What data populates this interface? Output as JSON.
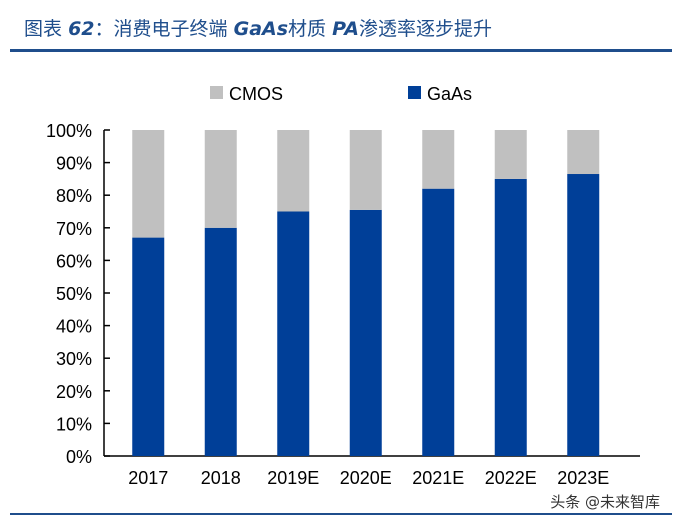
{
  "title": {
    "prefix": "图表",
    "number": "62",
    "sep": "：",
    "t1": "消费电子终端",
    "t2": "GaAs",
    "t3": "材质",
    "t4": "PA",
    "t5": "渗透率逐步提升"
  },
  "watermark": "头条 @未来智库",
  "chart_data": {
    "type": "bar",
    "stacked": true,
    "categories": [
      "2017",
      "2018",
      "2019E",
      "2020E",
      "2021E",
      "2022E",
      "2023E"
    ],
    "series": [
      {
        "name": "GaAs",
        "color": "#003f98",
        "values": [
          67,
          70,
          75,
          75.5,
          82,
          85,
          86.5
        ]
      },
      {
        "name": "CMOS",
        "color": "#c0c0c0",
        "values": [
          33,
          30,
          25,
          24.5,
          18,
          15,
          13.5
        ]
      }
    ],
    "ylim": [
      0,
      100
    ],
    "yticks": [
      "0%",
      "10%",
      "20%",
      "30%",
      "40%",
      "50%",
      "60%",
      "70%",
      "80%",
      "90%",
      "100%"
    ],
    "legend": "top",
    "grid": false
  }
}
